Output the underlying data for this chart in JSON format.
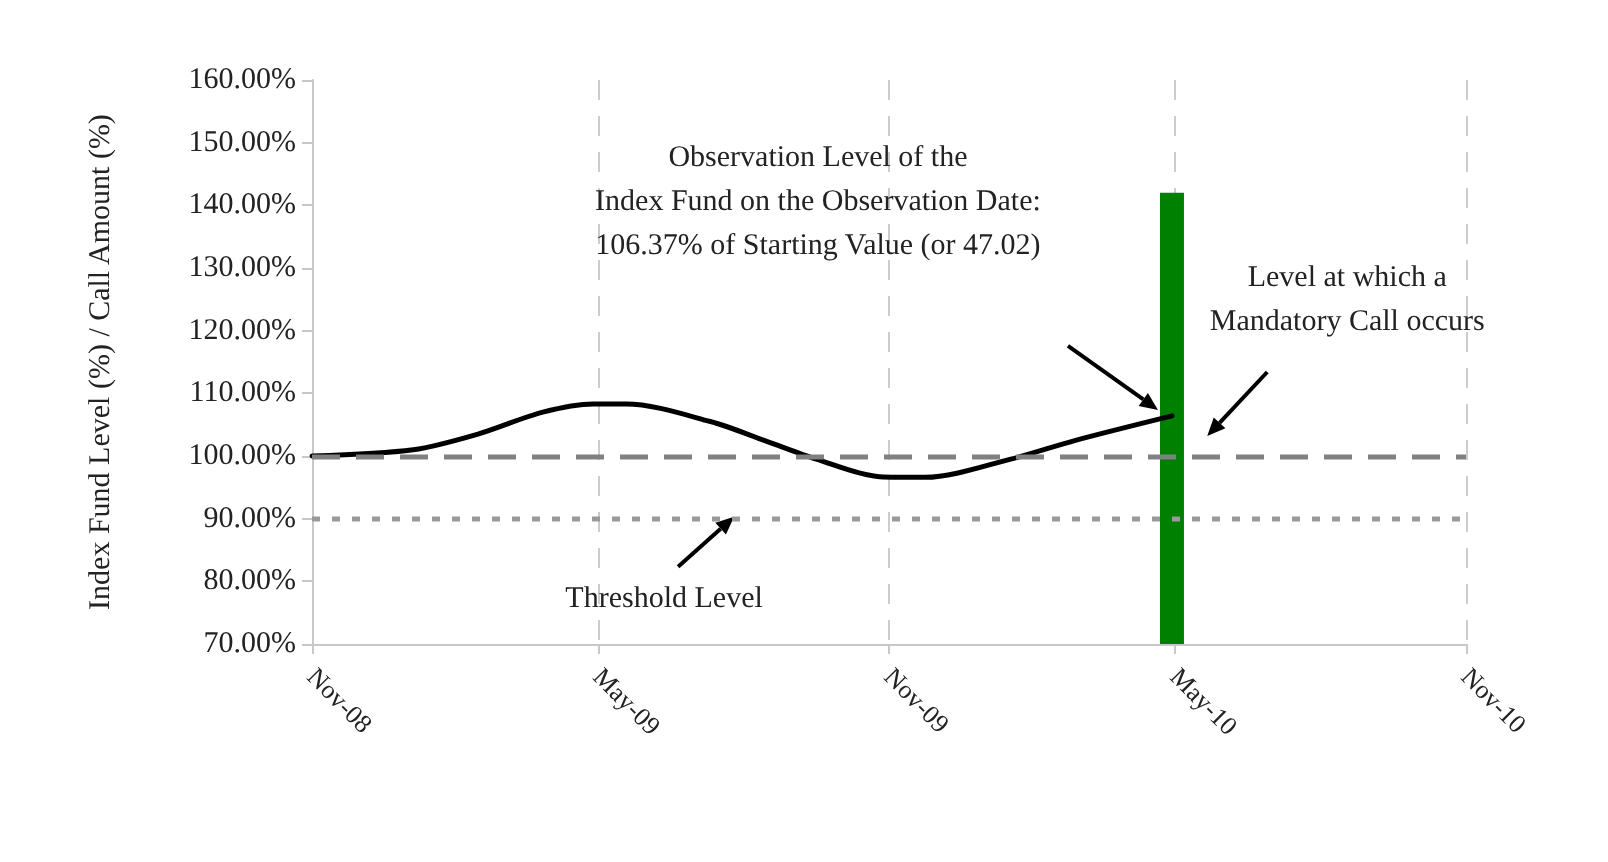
{
  "chart_data": {
    "type": "line",
    "ylabel": "Index Fund Level (%) / Call Amount (%)",
    "series": [
      {
        "color": "#000000",
        "x": [
          "2008-11-01",
          "2009-01-04",
          "2009-02-14",
          "2009-03-27",
          "2009-04-28",
          "2009-05-19",
          "2009-07-11",
          "2009-08-14",
          "2009-09-16",
          "2009-10-26",
          "2009-11-24",
          "2010-01-17",
          "2010-02-27",
          "2010-04-29"
        ],
        "values": [
          100,
          101,
          103.5,
          107,
          108.3,
          108.3,
          105.5,
          102.5,
          99.5,
          96.7,
          96.6,
          99.5,
          102.5,
          106.4
        ]
      },
      {
        "type": "bar",
        "color": "#008000",
        "x": [
          "2010-04-29"
        ],
        "values": [
          142
        ]
      }
    ],
    "xlim": [
      "2008-11-01",
      "2010-11-01"
    ],
    "xticks": [
      {
        "value": "2008-11-01",
        "label": "Nov-08"
      },
      {
        "value": "2009-05-01",
        "label": "May-09"
      },
      {
        "value": "2009-11-01",
        "label": "Nov-09"
      },
      {
        "value": "2010-05-01",
        "label": "May-10"
      },
      {
        "value": "2010-11-01",
        "label": "Nov-10"
      }
    ],
    "ylim": [
      70,
      160
    ],
    "yticks": [
      {
        "value": 70,
        "label": "70.00%"
      },
      {
        "value": 80,
        "label": "80.00%"
      },
      {
        "value": 90,
        "label": "90.00%"
      },
      {
        "value": 100,
        "label": "100.00%"
      },
      {
        "value": 110,
        "label": "110.00%"
      },
      {
        "value": 120,
        "label": "120.00%"
      },
      {
        "value": 130,
        "label": "130.00%"
      },
      {
        "value": 140,
        "label": "140.00%"
      },
      {
        "value": 150,
        "label": "150.00%"
      },
      {
        "value": 160,
        "label": "160.00%"
      }
    ],
    "grid": "x",
    "marker": "none",
    "line_style": "solid",
    "ref_lines": [
      {
        "axis": "y",
        "value": 100,
        "color": "#808080",
        "line_style": "dashed"
      },
      {
        "axis": "y",
        "value": 90,
        "color": "#999999",
        "line_style": "dotted"
      }
    ],
    "annotations": [
      "Observation Level of the\nIndex Fund on the Observation Date:\n106.37% of Starting Value (or 47.02)",
      "Level at which a\nMandatory Call occurs",
      {
        "text": "Threshold Level",
        "x": "2009-07-26",
        "y": 90
      }
    ]
  }
}
